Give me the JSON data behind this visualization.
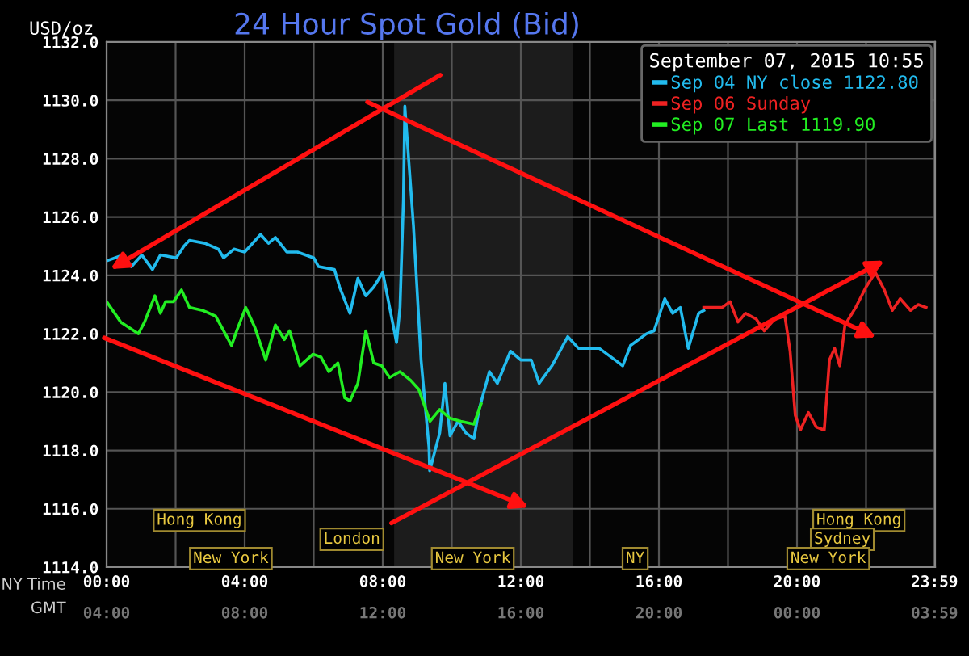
{
  "chart_data": {
    "type": "line",
    "title": "24 Hour Spot Gold (Bid)",
    "ylabel": "USD/oz",
    "xlabel": "NY Time",
    "x2label": "GMT",
    "legend_title": "September 07, 2015 10:55",
    "legend": "top right",
    "grid": true,
    "marker": "none",
    "line_style": "solid",
    "xlim": [
      0,
      24
    ],
    "ylim": [
      1114,
      1132
    ],
    "xticks": [
      {
        "value": 0,
        "label": "00:00"
      },
      {
        "value": 2,
        "label": null
      },
      {
        "value": 4,
        "label": "04:00"
      },
      {
        "value": 6,
        "label": null
      },
      {
        "value": 8,
        "label": "08:00"
      },
      {
        "value": 10,
        "label": null
      },
      {
        "value": 12,
        "label": "12:00"
      },
      {
        "value": 14,
        "label": null
      },
      {
        "value": 16,
        "label": "16:00"
      },
      {
        "value": 18,
        "label": null
      },
      {
        "value": 20,
        "label": "20:00"
      },
      {
        "value": 22,
        "label": null
      },
      {
        "value": 23.983,
        "label": "23:59"
      }
    ],
    "x2lim": [
      "2015-09-07T04:00",
      "2015-09-08T04:00"
    ],
    "x2ticks": [
      {
        "value": "2015-09-07T04:00",
        "label": "04:00"
      },
      {
        "value": "2015-09-07T08:00",
        "label": "08:00"
      },
      {
        "value": "2015-09-07T12:00",
        "label": "12:00"
      },
      {
        "value": "2015-09-07T16:00",
        "label": "16:00"
      },
      {
        "value": "2015-09-07T20:00",
        "label": "20:00"
      },
      {
        "value": "2015-09-08T00:00",
        "label": "00:00"
      },
      {
        "value": "2015-09-08T03:59",
        "label": "03:59"
      }
    ],
    "yticks": [
      {
        "value": 1114,
        "label": "1114.0"
      },
      {
        "value": 1116,
        "label": "1116.0"
      },
      {
        "value": 1118,
        "label": "1118.0"
      },
      {
        "value": 1120,
        "label": "1120.0"
      },
      {
        "value": 1122,
        "label": "1122.0"
      },
      {
        "value": 1124,
        "label": "1124.0"
      },
      {
        "value": 1126,
        "label": "1126.0"
      },
      {
        "value": 1128,
        "label": "1128.0"
      },
      {
        "value": 1130,
        "label": "1130.0"
      },
      {
        "value": 1132,
        "label": "1132.0"
      }
    ],
    "bands": [
      {
        "axis": "x",
        "from": 8.33,
        "to": 13.5,
        "color": "#1c1c1c"
      }
    ],
    "series": [
      {
        "name": "Sep 04 NY close 1122.80",
        "color": "#22bbee",
        "x": [
          0,
          0.49,
          0.72,
          1.02,
          1.33,
          1.56,
          2.02,
          2.24,
          2.4,
          2.85,
          3.24,
          3.39,
          3.69,
          4.0,
          4.46,
          4.69,
          4.89,
          5.22,
          5.53,
          6.0,
          6.14,
          6.6,
          6.75,
          7.05,
          7.28,
          7.51,
          7.74,
          8.0,
          8.2,
          8.4,
          8.5,
          8.6,
          8.64,
          8.89,
          9.11,
          9.34,
          9.36,
          9.65,
          9.8,
          9.95,
          10.18,
          10.41,
          10.64,
          10.79,
          11.09,
          11.32,
          11.7,
          12.0,
          12.3,
          12.53,
          12.9,
          13.36,
          13.67,
          14.27,
          14.73,
          14.95,
          15.18,
          15.64,
          15.86,
          16.17,
          16.4,
          16.62,
          16.85,
          17.15,
          17.3
        ],
        "values": [
          1124.5,
          1124.7,
          1124.3,
          1124.7,
          1124.2,
          1124.7,
          1124.6,
          1125.0,
          1125.2,
          1125.1,
          1124.9,
          1124.6,
          1124.9,
          1124.8,
          1125.4,
          1125.1,
          1125.3,
          1124.8,
          1124.8,
          1124.6,
          1124.3,
          1124.2,
          1123.6,
          1122.7,
          1123.9,
          1123.3,
          1123.6,
          1124.1,
          1122.9,
          1121.7,
          1122.9,
          1126.6,
          1129.8,
          1125.7,
          1121.1,
          1118.1,
          1117.3,
          1118.6,
          1120.3,
          1118.5,
          1119.0,
          1118.6,
          1118.4,
          1119.4,
          1120.7,
          1120.3,
          1121.4,
          1121.1,
          1121.1,
          1120.3,
          1120.9,
          1121.9,
          1121.5,
          1121.5,
          1121.1,
          1120.9,
          1121.6,
          1122.0,
          1122.1,
          1123.2,
          1122.7,
          1122.9,
          1121.5,
          1122.7,
          1122.8
        ]
      },
      {
        "name": "Sep 06 Sunday",
        "color": "#ee2222",
        "x": [
          17.3,
          17.83,
          18.06,
          18.29,
          18.51,
          18.82,
          19.05,
          19.35,
          19.65,
          19.8,
          19.95,
          20.1,
          20.33,
          20.56,
          20.79,
          20.94,
          21.09,
          21.24,
          21.39,
          21.7,
          22.0,
          22.27,
          22.53,
          22.76,
          22.99,
          23.29,
          23.51,
          23.74
        ],
        "values": [
          1122.9,
          1122.9,
          1123.1,
          1122.4,
          1122.7,
          1122.5,
          1122.1,
          1122.5,
          1122.6,
          1121.4,
          1119.2,
          1118.7,
          1119.3,
          1118.8,
          1118.7,
          1121.1,
          1121.5,
          1120.9,
          1122.3,
          1122.9,
          1123.6,
          1124.1,
          1123.5,
          1122.8,
          1123.2,
          1122.8,
          1123.0,
          1122.9
        ]
      },
      {
        "name": "Sep 07 Last 1119.90",
        "color": "#22ee22",
        "x": [
          0,
          0.41,
          0.92,
          1.1,
          1.4,
          1.56,
          1.71,
          1.94,
          2.17,
          2.4,
          2.78,
          3.16,
          3.39,
          3.62,
          3.77,
          4.03,
          4.3,
          4.61,
          4.89,
          5.15,
          5.3,
          5.6,
          5.98,
          6.21,
          6.44,
          6.7,
          6.9,
          7.05,
          7.28,
          7.51,
          7.74,
          7.97,
          8.2,
          8.5,
          8.81,
          9.04,
          9.37,
          9.65,
          9.95,
          10.26,
          10.64,
          10.85
        ],
        "values": [
          1123.1,
          1122.4,
          1122.0,
          1122.4,
          1123.3,
          1122.7,
          1123.1,
          1123.1,
          1123.5,
          1122.9,
          1122.8,
          1122.6,
          1122.1,
          1121.6,
          1122.1,
          1122.9,
          1122.2,
          1121.1,
          1122.3,
          1121.8,
          1122.1,
          1120.9,
          1121.3,
          1121.2,
          1120.7,
          1121.0,
          1119.8,
          1119.7,
          1120.3,
          1122.1,
          1121.0,
          1120.9,
          1120.5,
          1120.7,
          1120.4,
          1120.1,
          1119.0,
          1119.4,
          1119.1,
          1119.0,
          1118.9,
          1119.6
        ]
      }
    ],
    "annotations": [
      "Hong Kong",
      "London",
      "New York",
      "New York",
      "NY",
      "Hong Kong",
      "Sydney",
      "New York"
    ]
  }
}
